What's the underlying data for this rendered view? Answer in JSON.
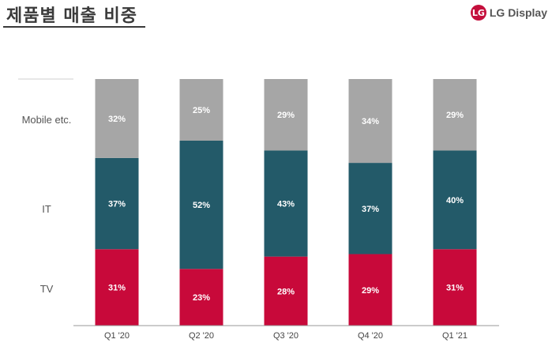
{
  "header": {
    "title": "제품별 매출 비중",
    "logo_text": "LG Display",
    "logo_mark": "LG"
  },
  "colors": {
    "TV": "#c8093a",
    "IT": "#235a69",
    "Mobile etc.": "#a6a6a6"
  },
  "chart_data": {
    "type": "bar",
    "stacked": true,
    "categories": [
      "Q1 '20",
      "Q2 '20",
      "Q3 '20",
      "Q4 '20",
      "Q1 '21"
    ],
    "series": [
      {
        "name": "TV",
        "values": [
          31,
          23,
          28,
          29,
          31
        ]
      },
      {
        "name": "IT",
        "values": [
          37,
          52,
          43,
          37,
          40
        ]
      },
      {
        "name": "Mobile etc.",
        "values": [
          32,
          25,
          29,
          34,
          29
        ]
      }
    ],
    "row_labels": [
      "Mobile etc.",
      "IT",
      "TV"
    ],
    "value_suffix": "%",
    "ylim": [
      0,
      100
    ],
    "title": "제품별 매출 비중",
    "xlabel": "",
    "ylabel": "",
    "legend": "left (row labels)"
  }
}
